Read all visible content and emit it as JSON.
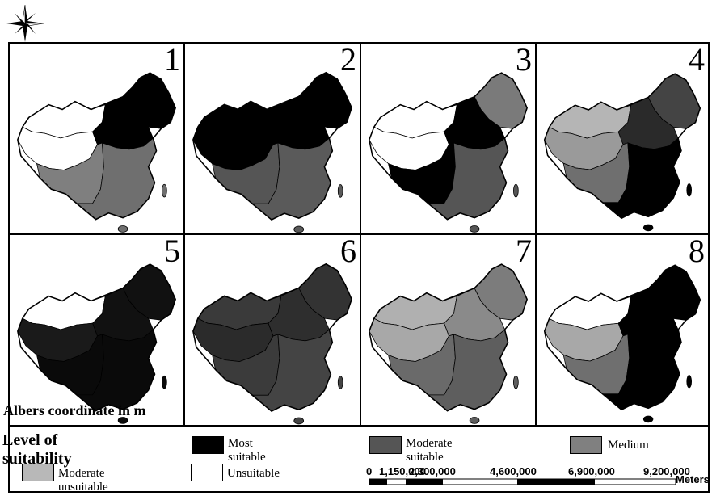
{
  "panels": [
    {
      "number": "1",
      "style": {
        "nw": "#ffffff",
        "tibet": "#ffffff",
        "ne": "#000000",
        "north": "#000000",
        "south": "#6f6f6f",
        "sw": "#7f7f7f",
        "outline": "#000"
      }
    },
    {
      "number": "2",
      "style": {
        "nw": "#000000",
        "tibet": "#000000",
        "ne": "#000000",
        "north": "#000000",
        "south": "#5a5a5a",
        "sw": "#555555",
        "outline": "#000"
      }
    },
    {
      "number": "3",
      "style": {
        "nw": "#ffffff",
        "tibet": "#ffffff",
        "ne": "#7a7a7a",
        "north": "#000000",
        "south": "#555555",
        "sw": "#000000",
        "outline": "#000"
      }
    },
    {
      "number": "4",
      "style": {
        "nw": "#b5b5b5",
        "tibet": "#9a9a9a",
        "ne": "#444444",
        "north": "#2a2a2a",
        "south": "#000000",
        "sw": "#6f6f6f",
        "outline": "#000"
      }
    },
    {
      "number": "5",
      "style": {
        "nw": "#ffffff",
        "tibet": "#1a1a1a",
        "ne": "#111111",
        "north": "#111111",
        "south": "#0a0a0a",
        "sw": "#0a0a0a",
        "outline": "#000"
      }
    },
    {
      "number": "6",
      "style": {
        "nw": "#3a3a3a",
        "tibet": "#2b2b2b",
        "ne": "#333333",
        "north": "#2e2e2e",
        "south": "#444444",
        "sw": "#3b3b3b",
        "outline": "#000"
      }
    },
    {
      "number": "7",
      "style": {
        "nw": "#b0b0b0",
        "tibet": "#a8a8a8",
        "ne": "#7c7c7c",
        "north": "#8a8a8a",
        "south": "#5e5e5e",
        "sw": "#6a6a6a",
        "outline": "#000"
      }
    },
    {
      "number": "8",
      "style": {
        "nw": "#ffffff",
        "tibet": "#a8a8a8",
        "ne": "#000000",
        "north": "#000000",
        "south": "#000000",
        "sw": "#6f6f6f",
        "outline": "#000"
      }
    }
  ],
  "coordinate_note": "Albers coordinate in m",
  "legend": {
    "title": "Level of suitability",
    "items": [
      {
        "label": "Most suitable",
        "color": "#000000"
      },
      {
        "label": "Moderate suitable",
        "color": "#555555"
      },
      {
        "label": "Medium",
        "color": "#808080"
      },
      {
        "label": "Moderate unsuitable",
        "color": "#b8b8b8"
      },
      {
        "label": "Unsuitable",
        "color": "#ffffff"
      }
    ]
  },
  "scale_bar": {
    "ticks": [
      "0",
      "1,150,000",
      "2,300,000",
      "4,600,000",
      "6,900,000",
      "9,200,000"
    ],
    "unit": "Meters"
  },
  "icons": {
    "north_arrow": "compass-rose-icon"
  }
}
